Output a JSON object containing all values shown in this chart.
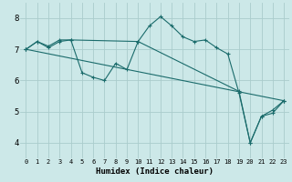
{
  "xlabel": "Humidex (Indice chaleur)",
  "bg_color": "#cce8e8",
  "grid_color": "#aacccc",
  "line_color": "#1a6b6b",
  "marker": "+",
  "line_series": [
    {
      "x": [
        0,
        1,
        2,
        3,
        4,
        5,
        6,
        7,
        8,
        9,
        10,
        11,
        12,
        13,
        14,
        15,
        16,
        17,
        18,
        19,
        20,
        21,
        22,
        23
      ],
      "y": [
        7.0,
        7.25,
        7.1,
        7.3,
        7.3,
        6.25,
        6.1,
        6.0,
        6.55,
        6.35,
        7.25,
        7.75,
        8.05,
        7.75,
        7.4,
        7.25,
        7.3,
        7.05,
        6.85,
        5.6,
        4.0,
        4.85,
        4.95,
        5.35
      ]
    },
    {
      "x": [
        0,
        1,
        2,
        3,
        4,
        10,
        19,
        20,
        21,
        22,
        23
      ],
      "y": [
        7.0,
        7.25,
        7.05,
        7.25,
        7.3,
        7.25,
        5.65,
        4.0,
        4.85,
        5.05,
        5.35
      ]
    },
    {
      "x": [
        0,
        23
      ],
      "y": [
        7.0,
        5.35
      ]
    }
  ],
  "xlim": [
    -0.5,
    23.5
  ],
  "ylim": [
    3.5,
    8.5
  ],
  "yticks": [
    4,
    5,
    6,
    7,
    8
  ],
  "xticks": [
    0,
    1,
    2,
    3,
    4,
    5,
    6,
    7,
    8,
    9,
    10,
    11,
    12,
    13,
    14,
    15,
    16,
    17,
    18,
    19,
    20,
    21,
    22,
    23
  ],
  "figwidth": 3.2,
  "figheight": 2.0,
  "dpi": 100
}
